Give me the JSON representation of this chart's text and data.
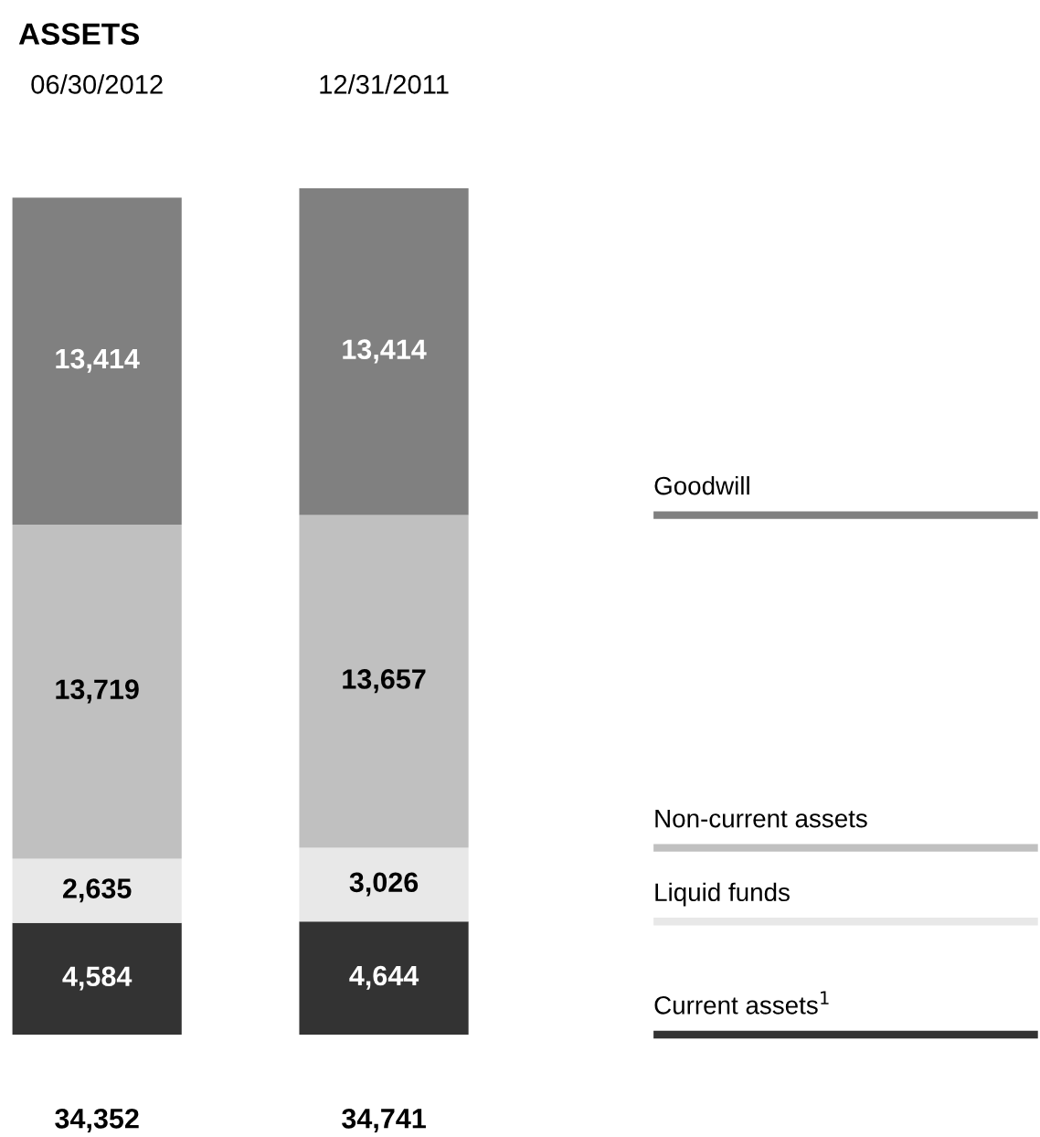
{
  "chart_data": {
    "type": "bar",
    "stacked": true,
    "title": "ASSETS",
    "categories": [
      "06/30/2012",
      "12/31/2011"
    ],
    "series": [
      {
        "name": "Current assets$^{1}$",
        "color": "#333333",
        "values": [
          4584,
          4644
        ],
        "value_labels": [
          "4,584",
          "4,644"
        ]
      },
      {
        "name": "Liquid funds",
        "color": "#e8e8e8",
        "values": [
          2635,
          3026
        ],
        "value_labels": [
          "2,635",
          "3,026"
        ]
      },
      {
        "name": "Non-current assets",
        "color": "#c0c0c0",
        "values": [
          13719,
          13657
        ],
        "value_labels": [
          "13,719",
          "13,657"
        ]
      },
      {
        "name": "Goodwill",
        "color": "#808080",
        "values": [
          13414,
          13414
        ],
        "value_labels": [
          "13,414",
          "13,414"
        ]
      }
    ],
    "totals": [
      "34,352",
      "34,741"
    ],
    "legend": "right"
  }
}
